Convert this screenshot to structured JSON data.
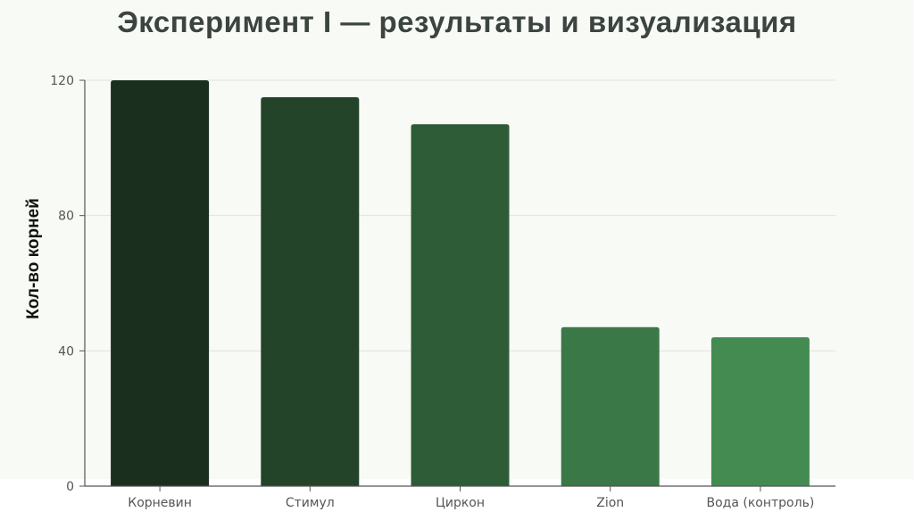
{
  "title": "Эксперимент I — результаты и визуализация",
  "colors": {
    "bars": [
      "#1b2f1e",
      "#234429",
      "#2e5c37",
      "#3a7847",
      "#438b51"
    ],
    "grid": "#e2e2e2",
    "axis": "#555555"
  },
  "chart_data": {
    "type": "bar",
    "title": "",
    "xlabel": "",
    "ylabel": "Кол-во корней",
    "categories": [
      "Корневин",
      "Стимул",
      "Циркон",
      "Zion",
      "Вода (контроль)"
    ],
    "values": [
      120,
      115,
      107,
      47,
      44
    ],
    "ylim": [
      0,
      120
    ],
    "yticks": [
      0,
      40,
      80,
      120
    ],
    "grid": true,
    "legend": "none"
  }
}
